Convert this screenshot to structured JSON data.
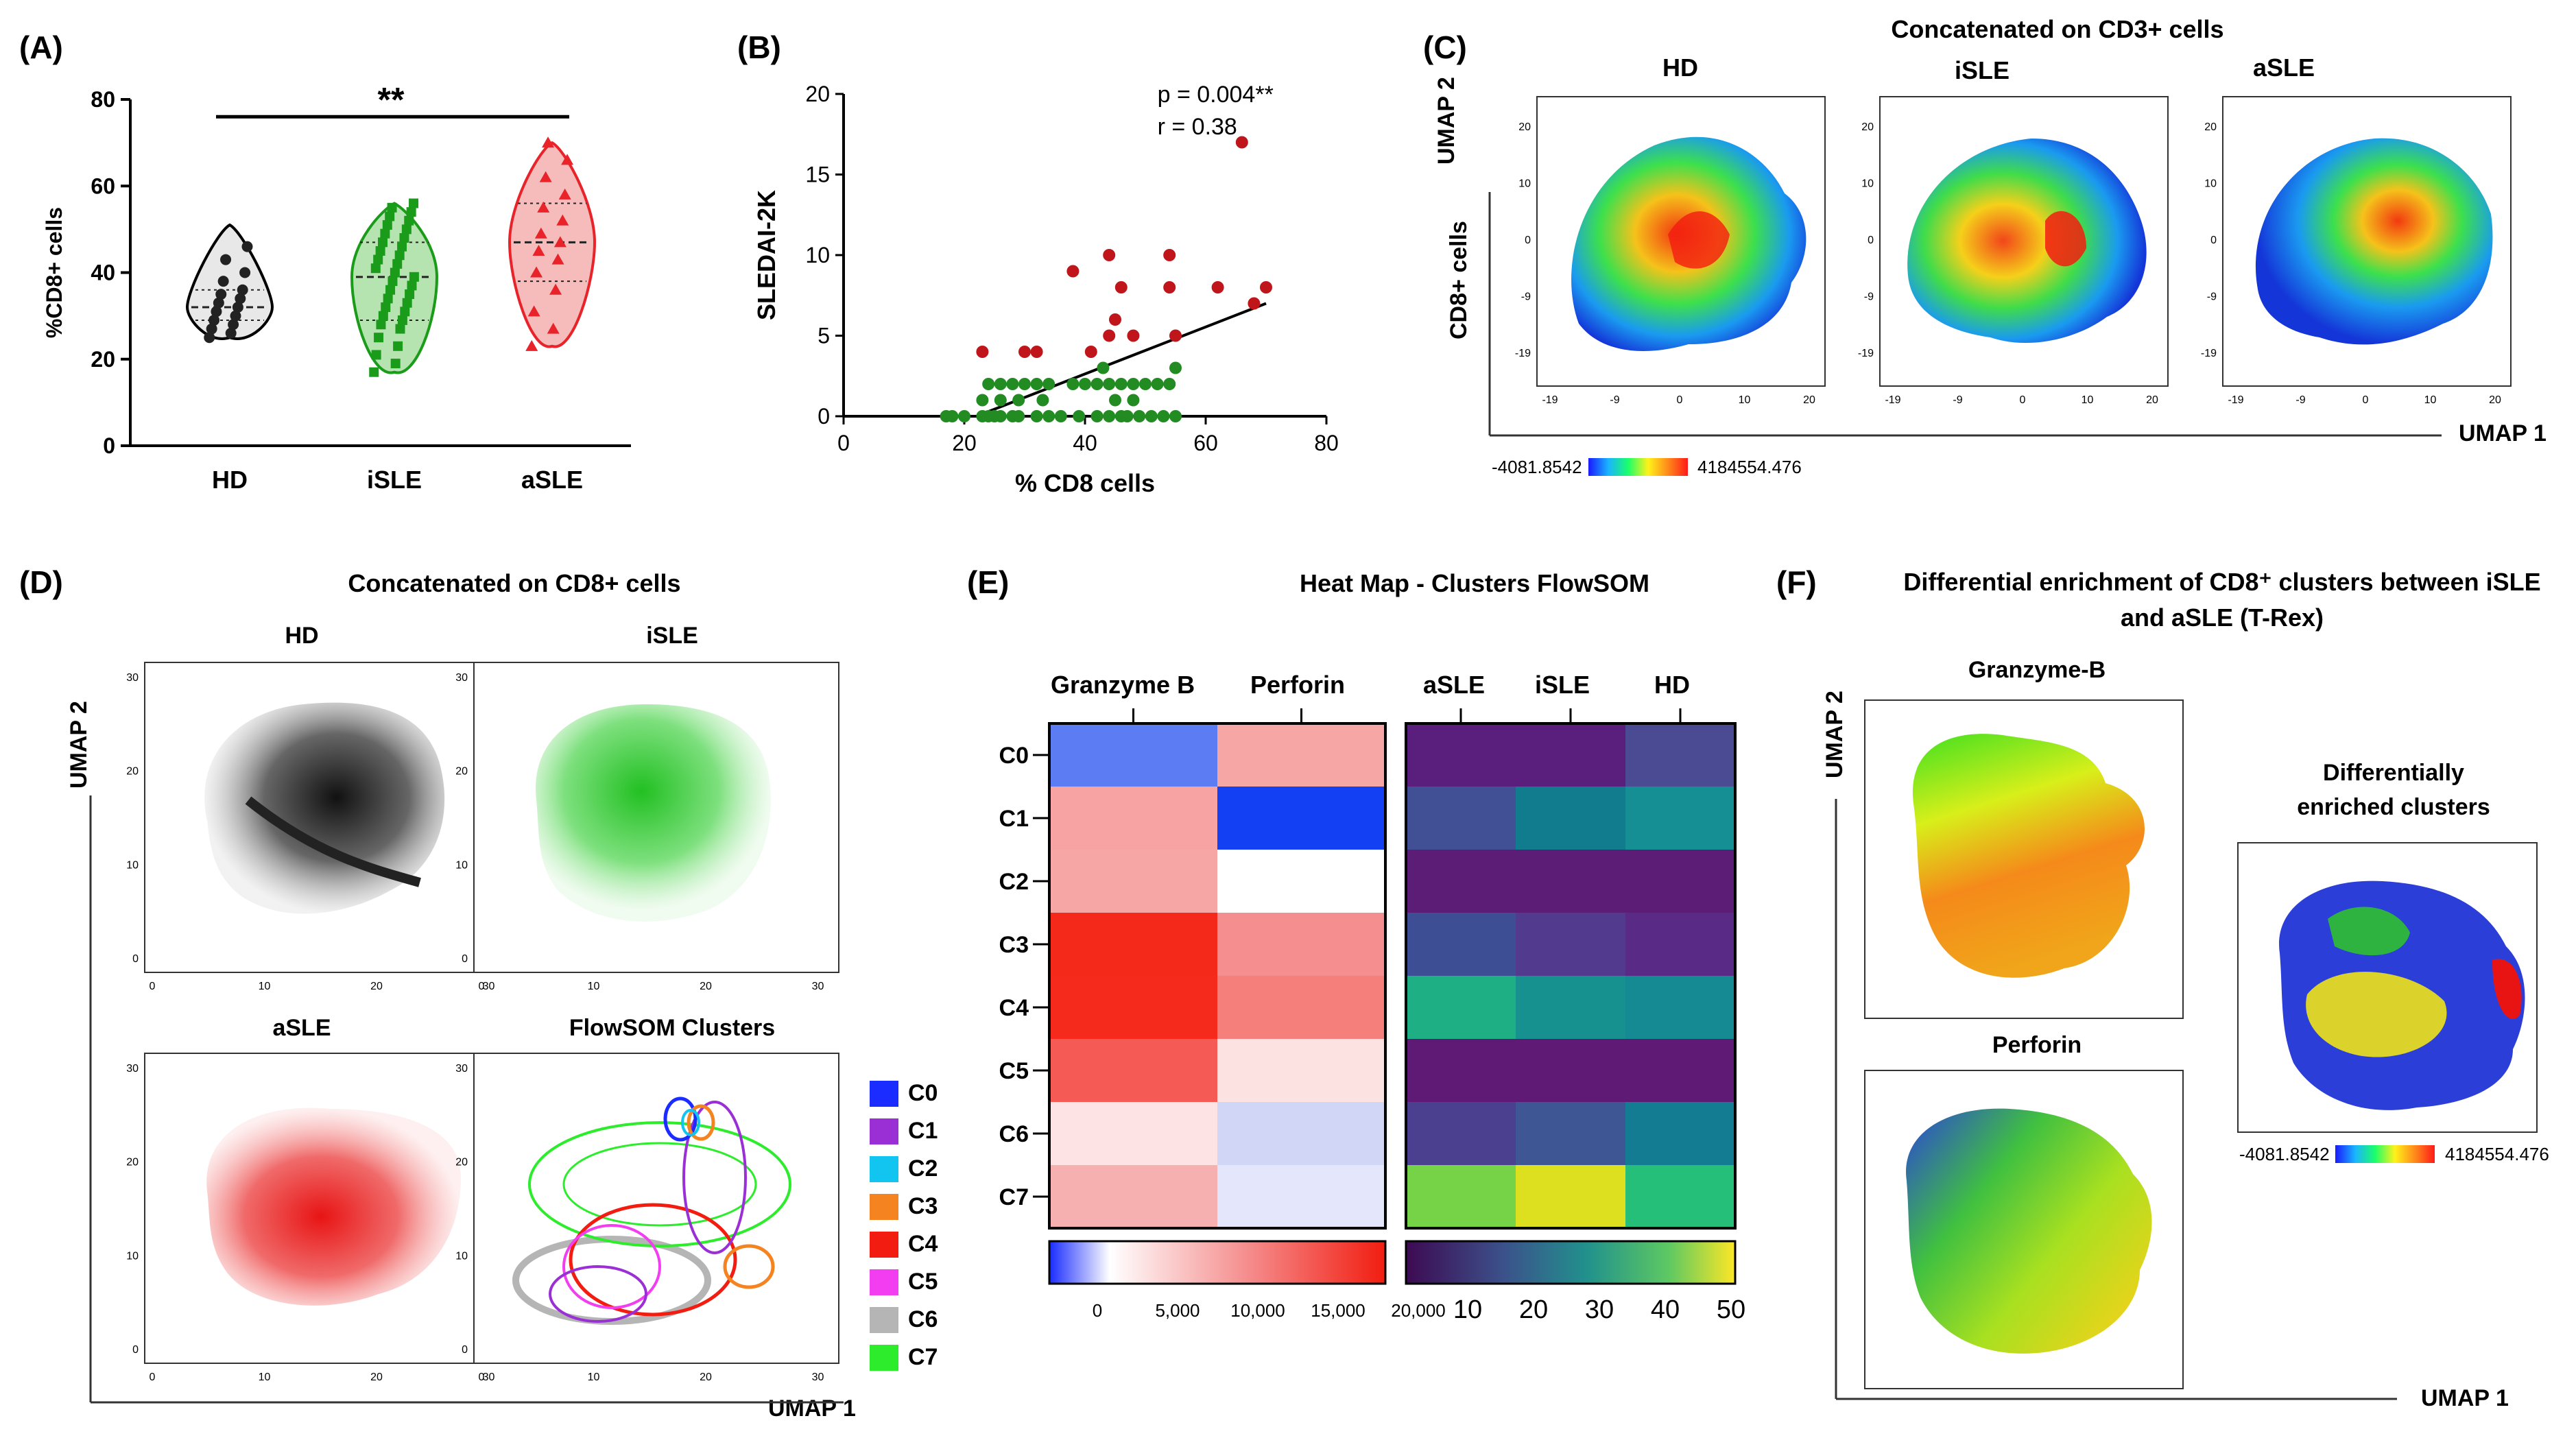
{
  "panels": {
    "A": {
      "label": "(A)"
    },
    "B": {
      "label": "(B)"
    },
    "C": {
      "label": "(C)",
      "title": "Concatenated on CD3+  cells",
      "subtitles": [
        "HD",
        "iSLE",
        "aSLE"
      ],
      "yaxis": "UMAP 2",
      "xaxis": "UMAP 1",
      "ylabel": "CD8+ cells",
      "scale_min": "-4081.8542",
      "scale_max": "4184554.476",
      "x_ticks": [
        "-19",
        "-9",
        "0",
        "10",
        "20"
      ],
      "y_ticks": [
        "20",
        "10",
        "0",
        "-9",
        "-19"
      ]
    },
    "D": {
      "label": "(D)",
      "title": "Concatenated on CD8+  cells",
      "subtitles": [
        "HD",
        "iSLE",
        "aSLE",
        "FlowSOM Clusters"
      ],
      "yaxis": "UMAP 2",
      "xaxis": "UMAP 1",
      "ticks": [
        "0",
        "10",
        "20",
        "30"
      ],
      "clusters": [
        {
          "name": "C0",
          "color": "#1a2cff"
        },
        {
          "name": "C1",
          "color": "#9b2fd6"
        },
        {
          "name": "C2",
          "color": "#12c4f0"
        },
        {
          "name": "C3",
          "color": "#f5831f"
        },
        {
          "name": "C4",
          "color": "#f21d10"
        },
        {
          "name": "C5",
          "color": "#f23df0"
        },
        {
          "name": "C6",
          "color": "#b5b5b5"
        },
        {
          "name": "C7",
          "color": "#2cec2c"
        }
      ]
    },
    "E": {
      "label": "(E)",
      "title": "Heat Map - Clusters FlowSOM",
      "left_cols": [
        "Granzyme B",
        "Perforin"
      ],
      "right_cols": [
        "aSLE",
        "iSLE",
        "HD"
      ],
      "rows": [
        "C0",
        "C1",
        "C2",
        "C3",
        "C4",
        "C5",
        "C6",
        "C7"
      ],
      "left_colors": [
        [
          "#5b7cf2",
          "#f7a6a6"
        ],
        [
          "#f7a3a3",
          "#1240f2"
        ],
        [
          "#f7a6a6",
          "#ffffff"
        ],
        [
          "#f5291a",
          "#f58f8f"
        ],
        [
          "#f52a1c",
          "#f57f7a"
        ],
        [
          "#f55a55",
          "#fde2e2"
        ],
        [
          "#fde3e3",
          "#d1d6f7"
        ],
        [
          "#f7b0b0",
          "#e4e7fb"
        ]
      ],
      "right_colors": [
        [
          "#5a1f7c",
          "#5a1f7c",
          "#4b4b94"
        ],
        [
          "#414f95",
          "#127c8f",
          "#168f94"
        ],
        [
          "#5c1d77",
          "#5c1d77",
          "#5c1d77"
        ],
        [
          "#3d4e95",
          "#523b8f",
          "#5a2b86"
        ],
        [
          "#1faf85",
          "#16918f",
          "#168a92"
        ],
        [
          "#5e1a74",
          "#5e1a74",
          "#5e1a74"
        ],
        [
          "#4b3f8f",
          "#3f5694",
          "#137c92"
        ],
        [
          "#76d347",
          "#dce01e",
          "#25bf79"
        ]
      ],
      "left_scale_ticks": [
        "0",
        "5,000",
        "10,000",
        "15,000",
        "20,000"
      ],
      "right_scale_ticks": [
        "10",
        "20",
        "30",
        "40",
        "50"
      ]
    },
    "F": {
      "label": "(F)",
      "title_line1": "Differential enrichment of CD8⁺ clusters between iSLE",
      "title_line2": "and aSLE (T-Rex)",
      "sub1": "Granzyme-B",
      "sub2": "Perforin",
      "sub3_line1": "Differentially",
      "sub3_line2": "enriched clusters",
      "yaxis": "UMAP 2",
      "xaxis": "UMAP 1",
      "scale_min": "-4081.8542",
      "scale_max": "4184554.476"
    }
  },
  "chart_data": [
    {
      "type": "violin",
      "panel": "A",
      "title": "",
      "ylabel": "%CD8+ cells",
      "ylim": [
        0,
        80
      ],
      "yticks": [
        0,
        20,
        40,
        60,
        80
      ],
      "categories": [
        "HD",
        "iSLE",
        "aSLE"
      ],
      "colors": [
        "#000000",
        "#1a9c1a",
        "#e8232a"
      ],
      "fills": [
        "#e8e8e8",
        "#b6e4b0",
        "#f6bcbc"
      ],
      "ranges": [
        [
          25,
          51
        ],
        [
          17,
          56
        ],
        [
          23,
          70
        ]
      ],
      "medians": [
        32,
        39,
        47
      ],
      "quartiles": [
        [
          29,
          36
        ],
        [
          29,
          47
        ],
        [
          38,
          56
        ]
      ],
      "significance": "**",
      "points": [
        [
          25,
          26,
          27,
          28,
          29,
          30,
          31,
          32,
          33,
          34,
          35,
          36,
          38,
          40,
          43,
          46
        ],
        [
          17,
          19,
          21,
          23,
          25,
          27,
          28,
          29,
          30,
          31,
          32,
          33,
          34,
          35,
          36,
          37,
          38,
          39,
          40,
          41,
          42,
          43,
          44,
          45,
          46,
          47,
          48,
          49,
          50,
          51,
          52,
          53,
          54,
          55,
          56
        ],
        [
          23,
          27,
          31,
          36,
          40,
          43,
          45,
          47,
          49,
          52,
          55,
          58,
          62,
          66,
          70
        ]
      ]
    },
    {
      "type": "scatter",
      "panel": "B",
      "xlabel": "% CD8 cells",
      "ylabel": "SLEDAI-2K",
      "xlim": [
        0,
        80
      ],
      "ylim": [
        0,
        20
      ],
      "xticks": [
        0,
        20,
        40,
        60,
        80
      ],
      "yticks": [
        0,
        5,
        10,
        15,
        20
      ],
      "annotation_line1": "p = 0.004**",
      "annotation_line2": "r = 0.38",
      "regression": [
        [
          22,
          0
        ],
        [
          70,
          7
        ]
      ],
      "series": [
        {
          "name": "green",
          "color": "#228b22",
          "points": [
            [
              17,
              0
            ],
            [
              18,
              0
            ],
            [
              20,
              0
            ],
            [
              23,
              0
            ],
            [
              24,
              0
            ],
            [
              25,
              0
            ],
            [
              26,
              0
            ],
            [
              28,
              0
            ],
            [
              29,
              0
            ],
            [
              32,
              0
            ],
            [
              34,
              0
            ],
            [
              36,
              0
            ],
            [
              39,
              0
            ],
            [
              42,
              0
            ],
            [
              44,
              0
            ],
            [
              46,
              0
            ],
            [
              47,
              0
            ],
            [
              49,
              0
            ],
            [
              51,
              0
            ],
            [
              53,
              0
            ],
            [
              55,
              0
            ],
            [
              23,
              1
            ],
            [
              26,
              1
            ],
            [
              29,
              1
            ],
            [
              33,
              1
            ],
            [
              45,
              1
            ],
            [
              48,
              1
            ],
            [
              24,
              2
            ],
            [
              26,
              2
            ],
            [
              28,
              2
            ],
            [
              30,
              2
            ],
            [
              32,
              2
            ],
            [
              34,
              2
            ],
            [
              38,
              2
            ],
            [
              40,
              2
            ],
            [
              42,
              2
            ],
            [
              44,
              2
            ],
            [
              46,
              2
            ],
            [
              48,
              2
            ],
            [
              50,
              2
            ],
            [
              52,
              2
            ],
            [
              54,
              2
            ],
            [
              43,
              3
            ],
            [
              55,
              3
            ]
          ]
        },
        {
          "name": "red",
          "color": "#c0151b",
          "points": [
            [
              23,
              4
            ],
            [
              30,
              4
            ],
            [
              32,
              4
            ],
            [
              41,
              4
            ],
            [
              44,
              5
            ],
            [
              48,
              5
            ],
            [
              55,
              5
            ],
            [
              45,
              6
            ],
            [
              54,
              8
            ],
            [
              46,
              8
            ],
            [
              62,
              8
            ],
            [
              68,
              7
            ],
            [
              70,
              8
            ],
            [
              38,
              9
            ],
            [
              44,
              10
            ],
            [
              54,
              10
            ],
            [
              66,
              17
            ]
          ]
        }
      ]
    }
  ]
}
